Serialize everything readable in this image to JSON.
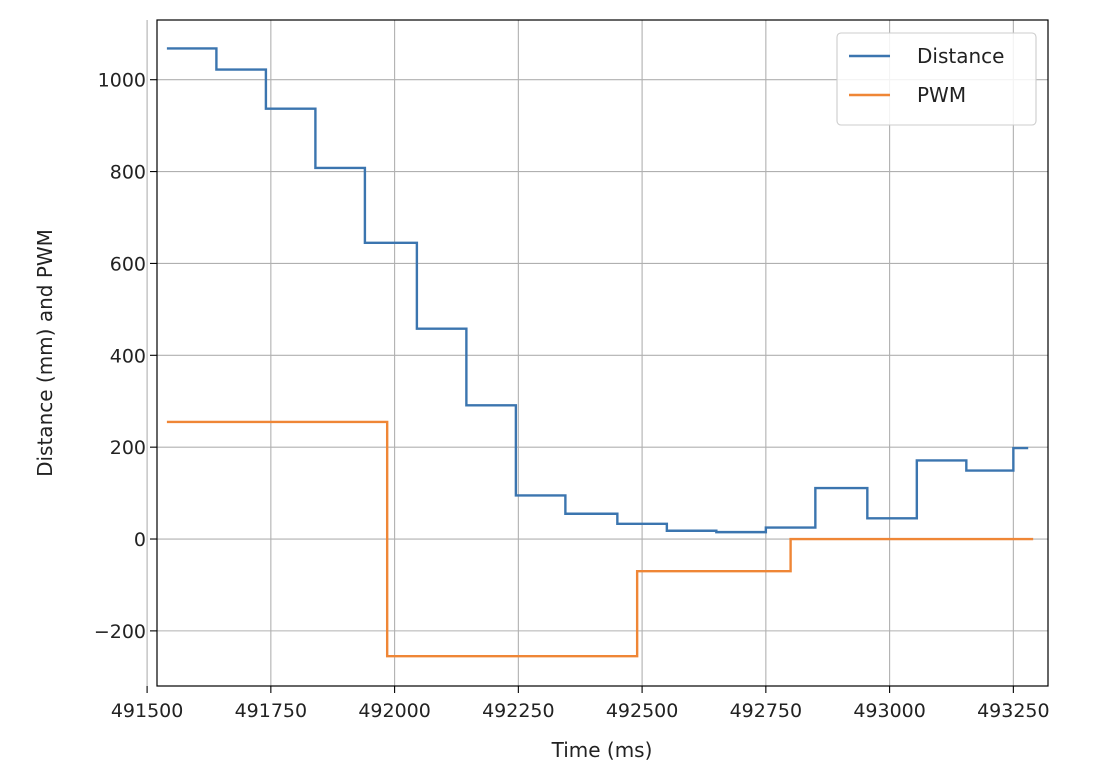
{
  "chart_data": {
    "type": "line",
    "xlabel": "Time (ms)",
    "ylabel": "Distance (mm) and PWM",
    "xlim": [
      491520,
      493320
    ],
    "ylim": [
      -320,
      1130
    ],
    "xticks": [
      491500,
      491750,
      492000,
      492250,
      492500,
      492750,
      493000,
      493250
    ],
    "yticks": [
      -200,
      0,
      200,
      400,
      600,
      800,
      1000
    ],
    "grid": true,
    "legend_position": "top-right",
    "series": [
      {
        "name": "Distance",
        "color": "#3b75af",
        "step": true,
        "x": [
          491540,
          491640,
          491740,
          491840,
          491940,
          492045,
          492145,
          492245,
          492345,
          492450,
          492550,
          492650,
          492750,
          492850,
          492955,
          493055,
          493155,
          493250,
          493280
        ],
        "y": [
          1068,
          1022,
          937,
          808,
          645,
          458,
          291,
          95,
          55,
          33,
          18,
          15,
          25,
          111,
          45,
          171,
          149,
          198,
          198
        ]
      },
      {
        "name": "PWM",
        "color": "#ef8636",
        "step": true,
        "x": [
          491540,
          491985,
          492490,
          492800,
          493290
        ],
        "y": [
          255,
          -255,
          -70,
          0,
          0
        ]
      }
    ]
  }
}
